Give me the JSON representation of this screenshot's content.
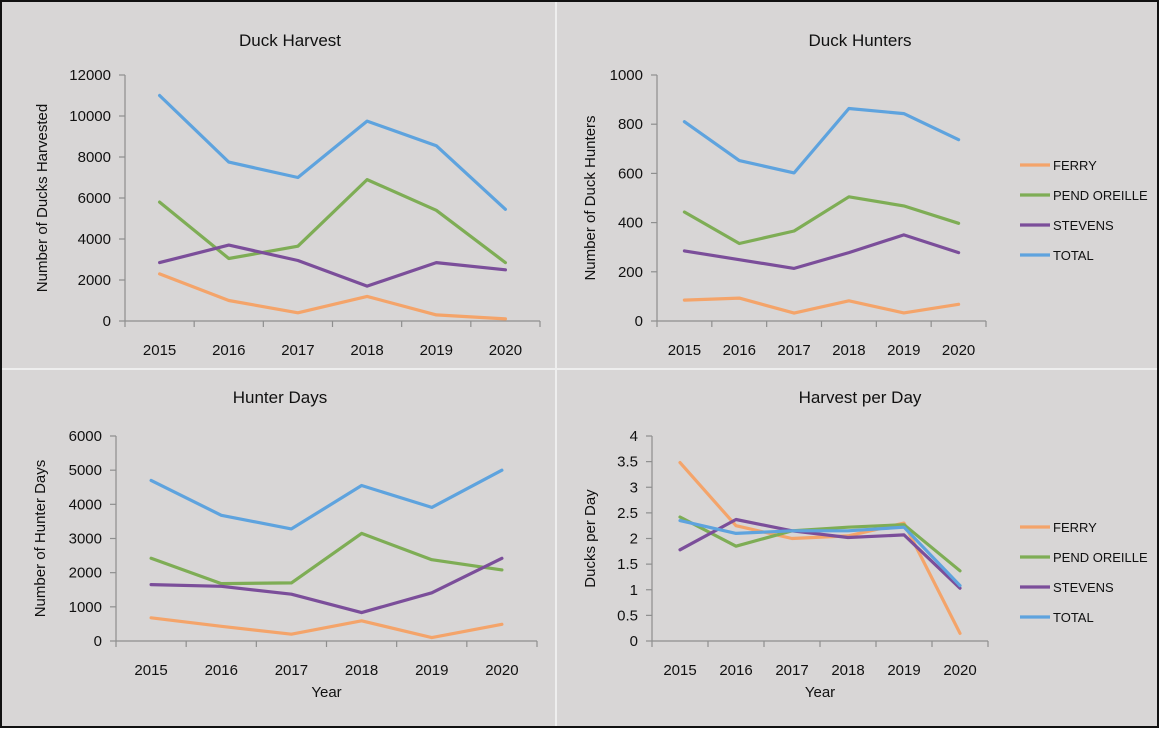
{
  "legend": {
    "entries": [
      {
        "name": "FERRY",
        "color": "#F4A46A"
      },
      {
        "name": "PEND OREILLE",
        "color": "#7EAD55"
      },
      {
        "name": "STEVENS",
        "color": "#7B4E9A"
      },
      {
        "name": "TOTAL",
        "color": "#5EA3DE"
      }
    ]
  },
  "colors": {
    "background": "#D8D6D6",
    "border": "#111111",
    "divider": "#EEEEEE",
    "axis": "#8E8E8E",
    "text": "#111111"
  },
  "chart_data": [
    {
      "type": "line",
      "title": "Duck Harvest",
      "xlabel": "",
      "ylabel": "Number of Ducks Harvested",
      "categories": [
        "2015",
        "2016",
        "2017",
        "2018",
        "2019",
        "2020"
      ],
      "ylim": [
        0,
        12000
      ],
      "yticks": [
        "0",
        "2000",
        "4000",
        "6000",
        "8000",
        "10000",
        "12000"
      ],
      "grid": false,
      "legend": "none",
      "series": [
        {
          "name": "FERRY",
          "values": [
            2300,
            1000,
            400,
            1200,
            300,
            100
          ]
        },
        {
          "name": "PEND OREILLE",
          "values": [
            5800,
            3050,
            3650,
            6900,
            5400,
            2850
          ]
        },
        {
          "name": "STEVENS",
          "values": [
            2850,
            3700,
            2950,
            1700,
            2850,
            2500
          ]
        },
        {
          "name": "TOTAL",
          "values": [
            11000,
            7750,
            7000,
            9750,
            8550,
            5450
          ]
        }
      ]
    },
    {
      "type": "line",
      "title": "Duck Hunters",
      "xlabel": "",
      "ylabel": "Number of Duck Hunters",
      "categories": [
        "2015",
        "2016",
        "2017",
        "2018",
        "2019",
        "2020"
      ],
      "ylim": [
        0,
        1000
      ],
      "yticks": [
        "0",
        "200",
        "400",
        "600",
        "800",
        "1000"
      ],
      "grid": false,
      "legend": "right",
      "series": [
        {
          "name": "FERRY",
          "values": [
            85,
            93,
            32,
            82,
            33,
            68
          ]
        },
        {
          "name": "PEND OREILLE",
          "values": [
            443,
            315,
            366,
            505,
            468,
            397
          ]
        },
        {
          "name": "STEVENS",
          "values": [
            285,
            249,
            214,
            278,
            350,
            278
          ]
        },
        {
          "name": "TOTAL",
          "values": [
            810,
            652,
            602,
            864,
            843,
            737
          ]
        }
      ]
    },
    {
      "type": "line",
      "title": "Hunter Days",
      "xlabel": "Year",
      "ylabel": "Number of Hunter Days",
      "categories": [
        "2015",
        "2016",
        "2017",
        "2018",
        "2019",
        "2020"
      ],
      "ylim": [
        0,
        6000
      ],
      "yticks": [
        "0",
        "1000",
        "2000",
        "3000",
        "4000",
        "5000",
        "6000"
      ],
      "grid": false,
      "legend": "none",
      "series": [
        {
          "name": "FERRY",
          "values": [
            680,
            430,
            200,
            590,
            100,
            490
          ]
        },
        {
          "name": "PEND OREILLE",
          "values": [
            2420,
            1680,
            1700,
            3150,
            2380,
            2080
          ]
        },
        {
          "name": "STEVENS",
          "values": [
            1650,
            1600,
            1370,
            830,
            1410,
            2420
          ]
        },
        {
          "name": "TOTAL",
          "values": [
            4700,
            3680,
            3280,
            4550,
            3910,
            5000
          ]
        }
      ]
    },
    {
      "type": "line",
      "title": "Harvest per Day",
      "xlabel": "Year",
      "ylabel": "Ducks per Day",
      "categories": [
        "2015",
        "2016",
        "2017",
        "2018",
        "2019",
        "2020"
      ],
      "ylim": [
        0,
        4
      ],
      "yticks": [
        "0",
        "0.5",
        "1",
        "1.5",
        "2",
        "2.5",
        "3",
        "3.5",
        "4"
      ],
      "grid": false,
      "legend": "right",
      "series": [
        {
          "name": "FERRY",
          "values": [
            3.48,
            2.25,
            2.0,
            2.05,
            2.3,
            0.15
          ]
        },
        {
          "name": "PEND OREILLE",
          "values": [
            2.42,
            1.85,
            2.15,
            2.22,
            2.27,
            1.37
          ]
        },
        {
          "name": "STEVENS",
          "values": [
            1.78,
            2.37,
            2.15,
            2.02,
            2.07,
            1.03
          ]
        },
        {
          "name": "TOTAL",
          "values": [
            2.35,
            2.1,
            2.15,
            2.15,
            2.22,
            1.08
          ]
        }
      ]
    }
  ]
}
